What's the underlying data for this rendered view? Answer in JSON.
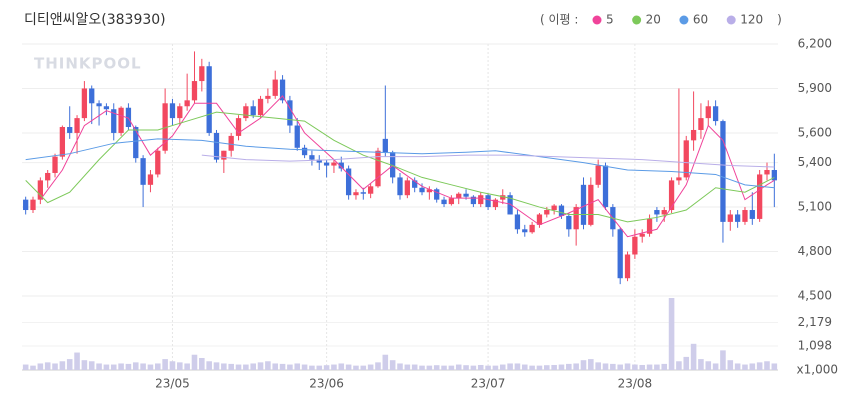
{
  "chart_data": {
    "type": "candlestick",
    "title": "디티앤씨알오(383930)",
    "watermark": "THINKPOOL",
    "legend_title": "( 이평 :",
    "legend_close": ")",
    "categories": [
      null,
      null,
      null,
      null,
      null,
      null,
      null,
      null,
      null,
      null,
      null,
      null,
      null,
      null,
      null,
      null,
      null,
      null,
      null,
      null,
      "23/05",
      null,
      null,
      null,
      null,
      null,
      null,
      null,
      null,
      null,
      null,
      null,
      null,
      null,
      null,
      null,
      null,
      null,
      null,
      null,
      null,
      "23/06",
      null,
      null,
      null,
      null,
      null,
      null,
      null,
      null,
      null,
      null,
      null,
      null,
      null,
      null,
      null,
      null,
      null,
      null,
      null,
      null,
      null,
      "23/07",
      null,
      null,
      null,
      null,
      null,
      null,
      null,
      null,
      null,
      null,
      null,
      null,
      null,
      null,
      null,
      null,
      null,
      null,
      null,
      "23/08",
      null,
      null,
      null,
      null,
      null,
      null,
      null,
      null,
      null,
      null,
      null,
      null,
      null,
      null,
      null,
      null,
      null,
      null,
      null
    ],
    "open": [
      5150,
      5080,
      5150,
      5280,
      5330,
      5440,
      5640,
      5600,
      5700,
      5900,
      5800,
      5780,
      5760,
      5600,
      5770,
      5640,
      5430,
      5250,
      5320,
      5480,
      5800,
      5700,
      5780,
      5820,
      5950,
      6050,
      5600,
      5420,
      5480,
      5580,
      5700,
      5780,
      5720,
      5830,
      5850,
      5960,
      5820,
      5650,
      5500,
      5450,
      5420,
      5400,
      5380,
      5400,
      5360,
      5180,
      5200,
      5190,
      5240,
      5560,
      5470,
      5300,
      5180,
      5280,
      5230,
      5200,
      5220,
      5150,
      5120,
      5160,
      5190,
      5170,
      5120,
      5180,
      5100,
      5150,
      5180,
      5050,
      4950,
      4930,
      4980,
      5050,
      5080,
      5110,
      5040,
      4950,
      5250,
      4980,
      5250,
      5380,
      5100,
      4950,
      4620,
      4780,
      4900,
      4920,
      5080,
      5050,
      5080,
      5280,
      5300,
      5550,
      5620,
      5700,
      5780,
      5680,
      5000,
      5050,
      5000,
      5080,
      5020,
      5320,
      5350
    ],
    "high": [
      5170,
      5170,
      5300,
      5350,
      5460,
      5650,
      5780,
      5720,
      5950,
      5920,
      5820,
      5800,
      5800,
      5780,
      5800,
      5650,
      5450,
      5350,
      5500,
      5900,
      5830,
      5800,
      6000,
      6150,
      6100,
      6080,
      5620,
      5480,
      5600,
      5720,
      5800,
      5820,
      5850,
      5900,
      6020,
      5990,
      5850,
      5700,
      5520,
      5480,
      5450,
      5420,
      5420,
      5440,
      5380,
      5220,
      5230,
      5260,
      5500,
      5920,
      5480,
      5330,
      5300,
      5300,
      5260,
      5240,
      5230,
      5170,
      5180,
      5200,
      5220,
      5180,
      5200,
      5190,
      5160,
      5220,
      5200,
      5080,
      4980,
      5000,
      5060,
      5100,
      5120,
      5120,
      5060,
      5120,
      5300,
      5300,
      5420,
      5400,
      5120,
      4960,
      4800,
      4950,
      4950,
      5050,
      5100,
      5100,
      5300,
      5900,
      5580,
      5880,
      5800,
      5820,
      5820,
      5690,
      5080,
      5080,
      5100,
      5200,
      5350,
      5400,
      5460
    ],
    "low": [
      5050,
      5060,
      5120,
      5230,
      5300,
      5420,
      5560,
      5460,
      5680,
      5660,
      5650,
      5720,
      5550,
      5580,
      5620,
      5400,
      5100,
      5200,
      5300,
      5460,
      5650,
      5650,
      5750,
      5800,
      5880,
      5580,
      5400,
      5330,
      5440,
      5550,
      5680,
      5700,
      5700,
      5800,
      5830,
      5800,
      5600,
      5480,
      5430,
      5380,
      5350,
      5300,
      5330,
      5340,
      5150,
      5150,
      5150,
      5160,
      5230,
      5440,
      5260,
      5150,
      5160,
      5200,
      5180,
      5150,
      5130,
      5100,
      5110,
      5120,
      5150,
      5100,
      5100,
      5080,
      5080,
      5120,
      5050,
      4920,
      4900,
      4920,
      4960,
      5030,
      5050,
      5020,
      4900,
      4840,
      4950,
      4970,
      5230,
      5080,
      4900,
      4580,
      4600,
      4750,
      4860,
      4900,
      5000,
      5000,
      5060,
      5250,
      5280,
      5480,
      5560,
      5650,
      5650,
      4860,
      4940,
      4960,
      4980,
      4980,
      5000,
      5280,
      5100
    ],
    "close": [
      5080,
      5150,
      5280,
      5330,
      5440,
      5640,
      5600,
      5700,
      5900,
      5800,
      5780,
      5760,
      5600,
      5770,
      5640,
      5430,
      5250,
      5320,
      5480,
      5800,
      5700,
      5780,
      5820,
      5950,
      6050,
      5600,
      5420,
      5480,
      5580,
      5700,
      5780,
      5720,
      5830,
      5850,
      5960,
      5820,
      5650,
      5500,
      5450,
      5420,
      5400,
      5380,
      5400,
      5360,
      5180,
      5200,
      5190,
      5240,
      5480,
      5470,
      5300,
      5180,
      5280,
      5230,
      5200,
      5220,
      5150,
      5120,
      5160,
      5190,
      5170,
      5120,
      5180,
      5100,
      5150,
      5180,
      5050,
      4950,
      4930,
      4980,
      5050,
      5080,
      5110,
      5040,
      4950,
      5100,
      4980,
      5250,
      5380,
      5100,
      4950,
      4620,
      4780,
      4900,
      4920,
      5020,
      5050,
      5080,
      5280,
      5300,
      5550,
      5620,
      5700,
      5780,
      5680,
      5000,
      5050,
      5000,
      5080,
      5020,
      5320,
      5350,
      5280
    ],
    "up_color": "#f2485f",
    "down_color": "#3d6fd9",
    "ylim": [
      4500,
      6200
    ],
    "yticks": [
      {
        "value": 6200,
        "label": "6,200"
      },
      {
        "value": 5900,
        "label": "5,900"
      },
      {
        "value": 5600,
        "label": "5,600"
      },
      {
        "value": 5400,
        "label": "5,400"
      },
      {
        "value": 5100,
        "label": "5,100"
      },
      {
        "value": 4800,
        "label": "4,800"
      },
      {
        "value": 4500,
        "label": "4,500"
      }
    ],
    "moving_averages": [
      {
        "name": "5",
        "color": "#f0439a",
        "x": [
          2,
          5,
          8,
          11,
          14,
          17,
          20,
          23,
          26,
          29,
          32,
          35,
          38,
          42,
          46,
          50,
          54,
          58,
          62,
          66,
          70,
          74,
          78,
          82,
          86,
          90,
          93,
          95,
          98,
          101,
          102
        ],
        "values": [
          5150,
          5350,
          5650,
          5750,
          5700,
          5450,
          5580,
          5800,
          5800,
          5600,
          5700,
          5850,
          5600,
          5420,
          5220,
          5380,
          5240,
          5160,
          5160,
          5120,
          4980,
          5060,
          5150,
          4900,
          4950,
          5250,
          5650,
          5550,
          5150,
          5250,
          5280
        ]
      },
      {
        "name": "20",
        "color": "#7dc95a",
        "x": [
          0,
          3,
          6,
          10,
          14,
          18,
          22,
          26,
          30,
          34,
          38,
          42,
          46,
          50,
          54,
          58,
          62,
          66,
          70,
          74,
          78,
          82,
          86,
          90,
          94,
          98,
          102
        ],
        "values": [
          5280,
          5130,
          5200,
          5420,
          5620,
          5620,
          5680,
          5740,
          5720,
          5700,
          5680,
          5550,
          5450,
          5380,
          5300,
          5250,
          5200,
          5160,
          5100,
          5050,
          5050,
          5000,
          5030,
          5080,
          5230,
          5200,
          5300
        ]
      },
      {
        "name": "60",
        "color": "#5b9be6",
        "x": [
          0,
          6,
          12,
          18,
          24,
          30,
          36,
          42,
          48,
          54,
          60,
          64,
          70,
          76,
          82,
          88,
          94,
          98,
          102
        ],
        "values": [
          5420,
          5460,
          5530,
          5560,
          5550,
          5510,
          5490,
          5480,
          5470,
          5460,
          5470,
          5480,
          5440,
          5400,
          5350,
          5340,
          5320,
          5250,
          5230
        ]
      },
      {
        "name": "120",
        "color": "#b9aee8",
        "x": [
          24,
          30,
          36,
          42,
          48,
          54,
          60,
          66,
          72,
          78,
          84,
          90,
          96,
          102
        ],
        "values": [
          5450,
          5420,
          5410,
          5420,
          5440,
          5440,
          5450,
          5450,
          5440,
          5430,
          5420,
          5400,
          5380,
          5370
        ]
      }
    ],
    "volume": {
      "color": "#cfcdea",
      "unit_label": "x1,000",
      "ylim": [
        0,
        3300
      ],
      "yticks": [
        {
          "value": 2179,
          "label": "2,179"
        },
        {
          "value": 1098,
          "label": "1,098"
        }
      ],
      "values": [
        250,
        200,
        300,
        350,
        300,
        400,
        500,
        800,
        450,
        400,
        300,
        250,
        250,
        300,
        280,
        350,
        300,
        250,
        300,
        500,
        400,
        350,
        300,
        700,
        550,
        400,
        350,
        300,
        280,
        250,
        250,
        300,
        350,
        400,
        300,
        280,
        250,
        300,
        250,
        200,
        200,
        220,
        250,
        300,
        250,
        200,
        200,
        250,
        350,
        700,
        450,
        300,
        250,
        250,
        200,
        200,
        220,
        200,
        200,
        250,
        220,
        200,
        230,
        200,
        200,
        250,
        300,
        300,
        250,
        200,
        200,
        220,
        230,
        250,
        280,
        300,
        450,
        500,
        350,
        300,
        280,
        250,
        300,
        250,
        230,
        250,
        250,
        280,
        3300,
        400,
        600,
        1200,
        500,
        400,
        300,
        900,
        450,
        300,
        250,
        300,
        350,
        400,
        300
      ]
    }
  }
}
